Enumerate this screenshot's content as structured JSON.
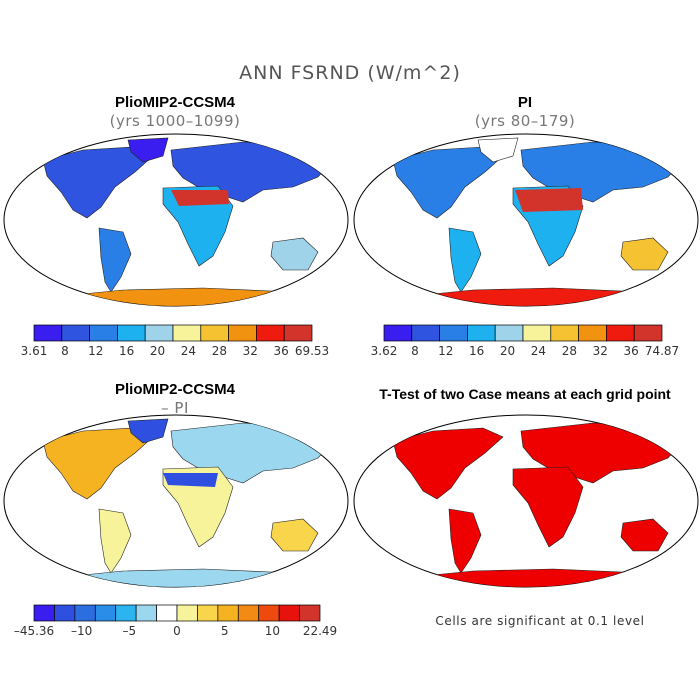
{
  "title": "ANN FSRND (W/m^2)",
  "panels": [
    {
      "title": "PlioMIP2-CCSM4",
      "subtitle": "(yrs 1000–1099)",
      "colorbar": {
        "colors": [
          "#3a1ef0",
          "#2f55e0",
          "#2a7fe6",
          "#1eb1f0",
          "#9fd3ea",
          "#f7f39a",
          "#f5c332",
          "#f29211",
          "#ee1b0e",
          "#d2332b"
        ],
        "tick_labels": [
          "3.61",
          "8",
          "12",
          "16",
          "20",
          "24",
          "28",
          "32",
          "36",
          "69.53"
        ]
      }
    },
    {
      "title": "PI",
      "subtitle": "(yrs 80–179)",
      "colorbar": {
        "colors": [
          "#3a1ef0",
          "#2f55e0",
          "#2a7fe6",
          "#1eb1f0",
          "#9fd3ea",
          "#f7f39a",
          "#f5c332",
          "#f29211",
          "#ee1b0e",
          "#d2332b"
        ],
        "tick_labels": [
          "3.62",
          "8",
          "12",
          "16",
          "20",
          "24",
          "28",
          "32",
          "36",
          "74.87"
        ]
      }
    },
    {
      "title": "PlioMIP2-CCSM4",
      "subtitle": "– PI",
      "colorbar": {
        "colors": [
          "#3a1ef0",
          "#2f4fe0",
          "#2a6ee0",
          "#2a8ee8",
          "#2cb4f0",
          "#9cd7f0",
          "#ffffff",
          "#f7f39a",
          "#f8d54a",
          "#f5b321",
          "#f28a14",
          "#ee4a10",
          "#e8120d",
          "#d2332b"
        ],
        "tick_labels": [
          "–45.36",
          "–10",
          "–5",
          "0",
          "5",
          "10",
          "22.49"
        ]
      }
    },
    {
      "title": "T-Test of two Case means at each grid point",
      "subtitle": ""
    }
  ],
  "note": "Cells are significant at 0.1 level",
  "style": {
    "significant_color": "#ee0000",
    "outline_color": "#000000"
  }
}
